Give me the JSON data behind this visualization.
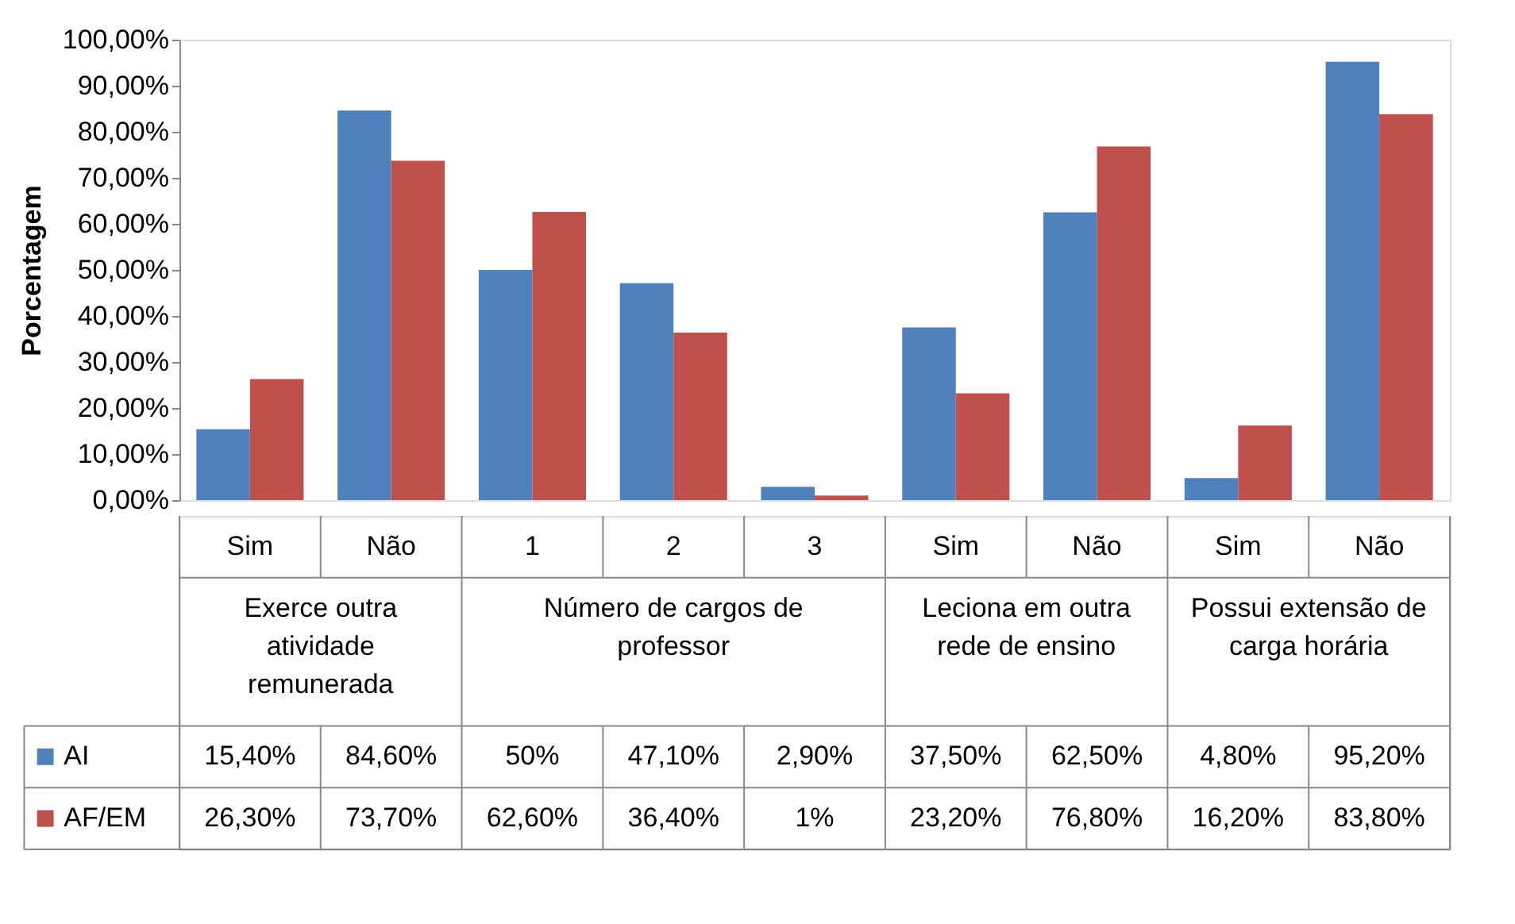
{
  "chart_data": {
    "type": "bar",
    "ylabel": "Porcentagem",
    "categories": [
      "Sim",
      "Não",
      "1",
      "2",
      "3",
      "Sim",
      "Não",
      "Sim",
      "Não"
    ],
    "series": [
      {
        "name": "AI",
        "color": "#4f81bd",
        "values": [
          15.4,
          84.6,
          50,
          47.1,
          2.9,
          37.5,
          62.5,
          4.8,
          95.2
        ],
        "value_labels": [
          "15,40%",
          "84,60%",
          "50%",
          "47,10%",
          "2,90%",
          "37,50%",
          "62,50%",
          "4,80%",
          "95,20%"
        ]
      },
      {
        "name": "AF/EM",
        "color": "#c0504d",
        "values": [
          26.3,
          73.7,
          62.6,
          36.4,
          1,
          23.2,
          76.8,
          16.2,
          83.8
        ],
        "value_labels": [
          "26,30%",
          "73,70%",
          "62,60%",
          "36,40%",
          "1%",
          "23,20%",
          "76,80%",
          "16,20%",
          "83,80%"
        ]
      }
    ],
    "annotations": [
      "Exerce outra atividade remunerada",
      "Número de cargos de professor",
      "Leciona em outra rede de ensino",
      "Possui extensão de carga horária"
    ],
    "ylim": [
      0,
      100
    ],
    "yticks": [
      {
        "value": 0,
        "label": "0,00%"
      },
      {
        "value": 10,
        "label": "10,00%"
      },
      {
        "value": 20,
        "label": "20,00%"
      },
      {
        "value": 30,
        "label": "30,00%"
      },
      {
        "value": 40,
        "label": "40,00%"
      },
      {
        "value": 50,
        "label": "50,00%"
      },
      {
        "value": 60,
        "label": "60,00%"
      },
      {
        "value": 70,
        "label": "70,00%"
      },
      {
        "value": 80,
        "label": "80,00%"
      },
      {
        "value": 90,
        "label": "90,00%"
      },
      {
        "value": 100,
        "label": "100,00%"
      }
    ],
    "grid": false,
    "legend": "bottom left"
  }
}
